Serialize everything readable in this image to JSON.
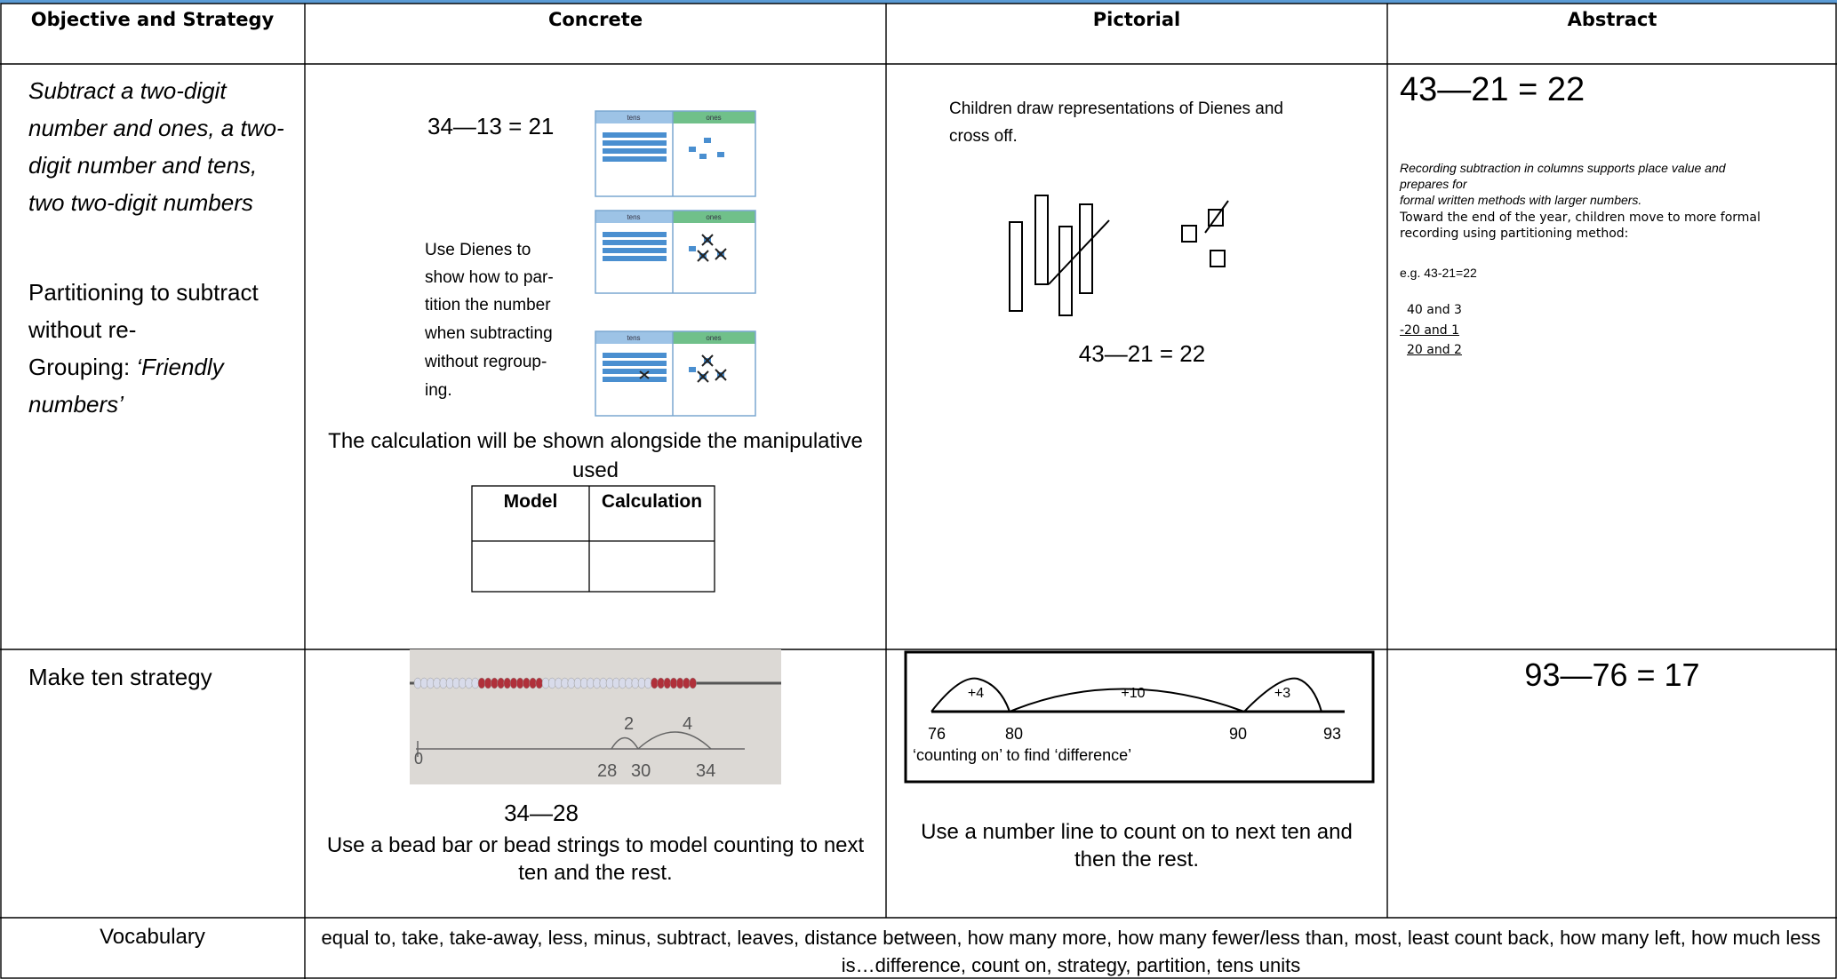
{
  "headers": [
    "Objective and Strategy",
    "Concrete",
    "Pictorial",
    "Abstract"
  ],
  "row1": {
    "objective": {
      "lines": [
        "Subtract a two-digit",
        "number and ones, a two-",
        "digit number and tens,",
        "two two-digit numbers"
      ],
      "strategy_lines": [
        "Partitioning to subtract",
        "without re-",
        "Grouping: "
      ],
      "strategy_italic_lines": [
        "‘Friendly",
        "numbers’"
      ]
    },
    "concrete": {
      "equation": "34—13 = 21",
      "tens_label": "tens",
      "ones_label": "ones",
      "note_lines": [
        "Use Dienes to",
        "show how to par-",
        "tition the number",
        "when subtracting",
        "without regroup-",
        "ing."
      ],
      "caption_lines": [
        "The calculation will be shown alongside the manipulative",
        "used"
      ],
      "table_headers": [
        "Model",
        "Calculation"
      ]
    },
    "pictorial": {
      "instruction_lines": [
        "Children draw representations of Dienes and",
        "cross off."
      ],
      "equation": "43—21 = 22"
    },
    "abstract": {
      "equation": "43—21 = 22",
      "italic_lines": [
        "Recording subtraction in columns supports place value and",
        "prepares for",
        "formal written methods with larger numbers."
      ],
      "note_lines": [
        "Toward the end of the year, children move to more formal",
        "recording using partitioning method:"
      ],
      "example": "e.g. 43-21=22",
      "working": [
        "40 and 3",
        "-20 and 1",
        "20 and 2"
      ]
    }
  },
  "row2": {
    "objective": "Make ten strategy",
    "concrete": {
      "marks": [
        "0",
        "2",
        "4",
        "28",
        "30",
        "34"
      ],
      "equation": "34—28",
      "caption_lines": [
        "Use a bead bar or bead strings to model counting to next",
        "ten and the rest."
      ]
    },
    "pictorial": {
      "jumps": [
        "+4",
        "+10",
        "+3"
      ],
      "points": [
        "76",
        "80",
        "90",
        "93"
      ],
      "line_caption": "‘counting on’ to find ‘difference’",
      "caption_lines": [
        "Use a number line to count on to next ten and",
        "then the rest."
      ]
    },
    "abstract": {
      "equation": "93—76 = 17"
    }
  },
  "vocabulary": {
    "label": "Vocabulary",
    "text": "equal to, take, take-away, less, minus, subtract, leaves, distance between, how many more, how many fewer/less than, most, least count back, how many left, how much less is…difference, count on, strategy, partition, tens units"
  }
}
